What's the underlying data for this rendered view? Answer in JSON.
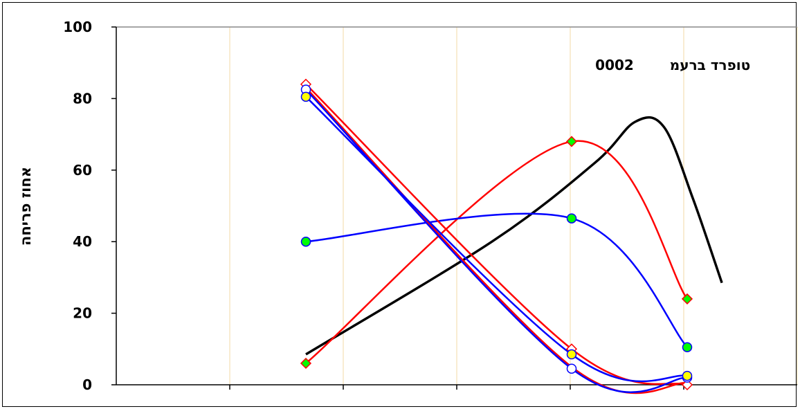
{
  "chart_data": {
    "type": "line",
    "title": "טופרד ברעמ   0002",
    "title_parts": {
      "text": "טופרד ברעמ",
      "number": "0002"
    },
    "ylabel": "אחוז פריחה",
    "xlabel": "",
    "ylim": [
      0,
      100
    ],
    "y_ticks": [
      "0",
      "20",
      "40",
      "60",
      "80",
      "100"
    ],
    "x_gridlines": 6,
    "grid": true,
    "legend": "none",
    "x_positions": [
      1,
      2,
      3
    ],
    "series": [
      {
        "color": "#000000",
        "marker": "none",
        "points": [
          [
            1.0,
            8.5
          ],
          [
            1.7,
            40
          ],
          [
            2.2,
            62
          ],
          [
            2.55,
            73.5
          ],
          [
            2.8,
            72
          ],
          [
            3.05,
            52
          ],
          [
            3.3,
            28.5
          ]
        ]
      },
      {
        "color": "#ff0000",
        "marker": "diamond-green",
        "points": [
          [
            1,
            6
          ],
          [
            2,
            68
          ],
          [
            3,
            24
          ]
        ]
      },
      {
        "color": "#0000ff",
        "marker": "circle-green",
        "points": [
          [
            1,
            40
          ],
          [
            2,
            46.5
          ],
          [
            3,
            10.5
          ]
        ]
      },
      {
        "color": "#ff0000",
        "marker": "diamond-open",
        "points": [
          [
            1,
            84
          ],
          [
            2,
            10
          ],
          [
            3,
            0
          ]
        ]
      },
      {
        "color": "#ff0000",
        "marker": "none",
        "points": [
          [
            1,
            83
          ],
          [
            2,
            5
          ],
          [
            3,
            0.5
          ]
        ]
      },
      {
        "color": "#0000ff",
        "marker": "circle-open",
        "points": [
          [
            1,
            82.5
          ],
          [
            2,
            4.5
          ],
          [
            3,
            2
          ]
        ]
      },
      {
        "color": "#0000ff",
        "marker": "circle-yellow",
        "points": [
          [
            1,
            80.5
          ],
          [
            2,
            8.5
          ],
          [
            3,
            2.5
          ]
        ]
      }
    ]
  }
}
